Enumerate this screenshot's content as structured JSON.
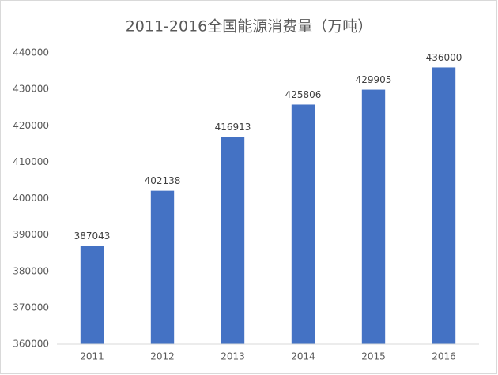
{
  "chart_data": {
    "type": "bar",
    "title": "2011-2016全国能源消费量（万吨）",
    "categories": [
      "2011",
      "2012",
      "2013",
      "2014",
      "2015",
      "2016"
    ],
    "values": [
      387043,
      402138,
      416913,
      425806,
      429905,
      436000
    ],
    "color": "#4472c4",
    "ylim": [
      360000,
      440000
    ],
    "yticks": [
      360000,
      370000,
      380000,
      390000,
      400000,
      410000,
      420000,
      430000,
      440000
    ],
    "grid": false
  }
}
